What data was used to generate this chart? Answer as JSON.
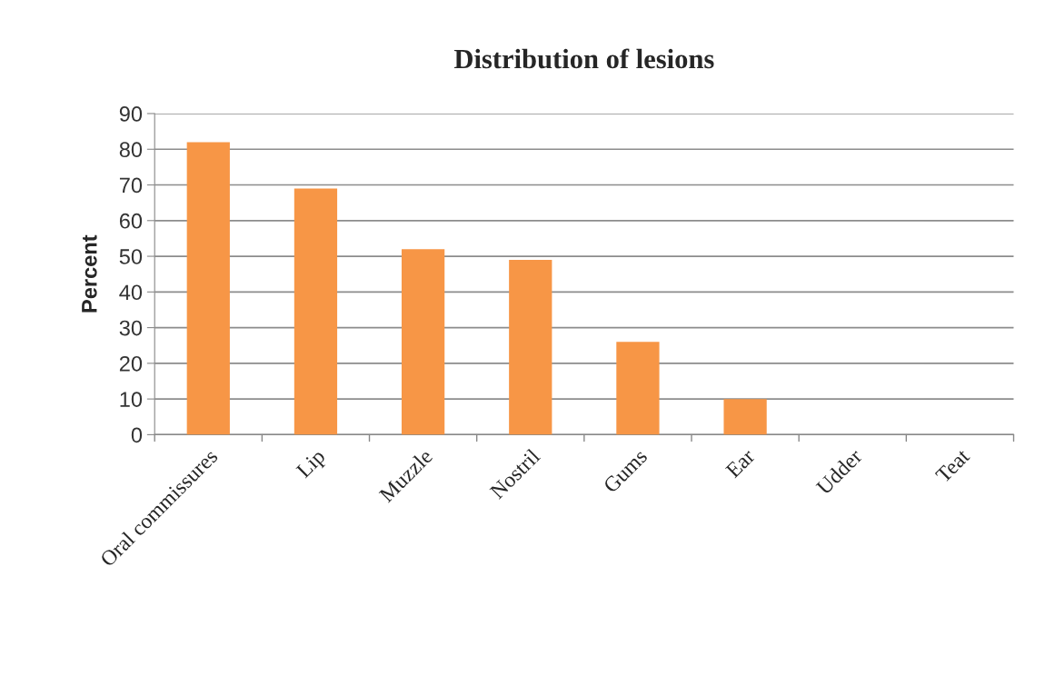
{
  "chart_data": {
    "type": "bar",
    "title": "Distribution of lesions",
    "ylabel": "Percent",
    "categories": [
      "Oral commissures",
      "Lip",
      "Muzzle",
      "Nostril",
      "Gums",
      "Ear",
      "Udder",
      "Teat"
    ],
    "values": [
      82,
      69,
      52,
      49,
      26,
      10,
      0,
      0
    ],
    "color": "#f79646",
    "ylim": [
      0,
      90
    ],
    "yticks": [
      0,
      10,
      20,
      30,
      40,
      50,
      60,
      70,
      80,
      90
    ],
    "grid": "y",
    "legend": false
  }
}
